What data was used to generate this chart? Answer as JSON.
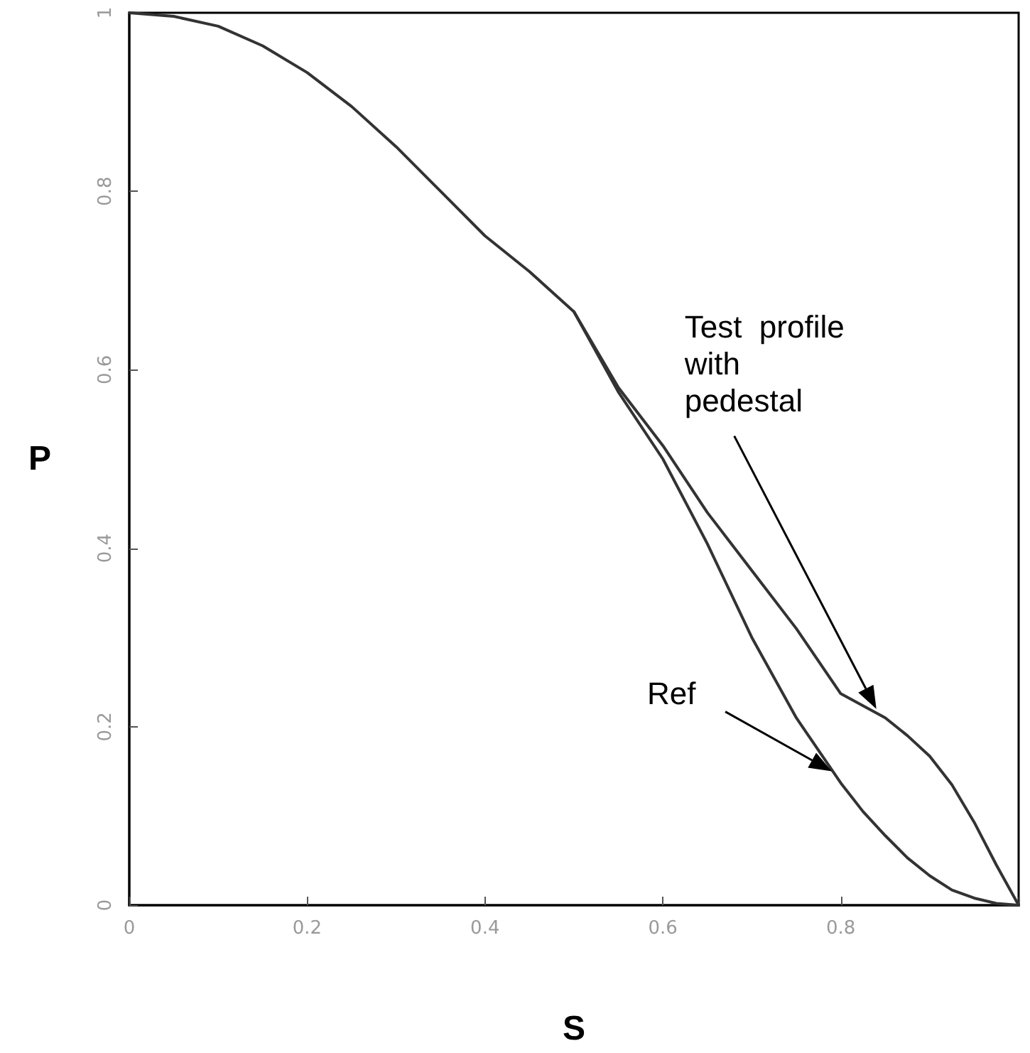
{
  "chart_data": {
    "type": "line",
    "xlabel": "S",
    "ylabel": "P",
    "xlim": [
      0,
      1
    ],
    "ylim": [
      0,
      1
    ],
    "xticks": [
      0,
      0.2,
      0.4,
      0.6,
      0.8,
      {
        "value": 1,
        "label": null
      }
    ],
    "yticks": [
      0,
      0.2,
      0.4,
      0.6,
      0.8,
      1
    ],
    "marker": "none",
    "line_style": "solid",
    "series": [
      {
        "color": "#333333",
        "x": [
          0,
          0.05,
          0.1,
          0.15,
          0.2,
          0.25,
          0.3,
          0.35,
          0.4,
          0.45,
          0.5,
          0.55,
          0.6,
          0.65,
          0.7,
          0.75,
          0.8,
          0.85,
          0.875,
          0.9,
          0.925,
          0.95,
          0.975,
          1
        ],
        "values": [
          1,
          0.996,
          0.985,
          0.963,
          0.933,
          0.895,
          0.85,
          0.8,
          0.75,
          0.71,
          0.665,
          0.58,
          0.515,
          0.44,
          0.375,
          0.31,
          0.237,
          0.21,
          0.19,
          0.167,
          0.135,
          0.093,
          0.045,
          0
        ]
      },
      {
        "color": "#333333",
        "x": [
          0.5,
          0.55,
          0.6,
          0.65,
          0.7,
          0.75,
          0.8,
          0.825,
          0.85,
          0.875,
          0.9,
          0.925,
          0.95,
          0.975,
          1
        ],
        "values": [
          0.665,
          0.575,
          0.5,
          0.405,
          0.3,
          0.21,
          0.137,
          0.105,
          0.078,
          0.053,
          0.033,
          0.017,
          0.008,
          0.002,
          0
        ]
      }
    ],
    "annotations": [
      "Test  profile\nwith\npedestal",
      "Ref"
    ]
  }
}
